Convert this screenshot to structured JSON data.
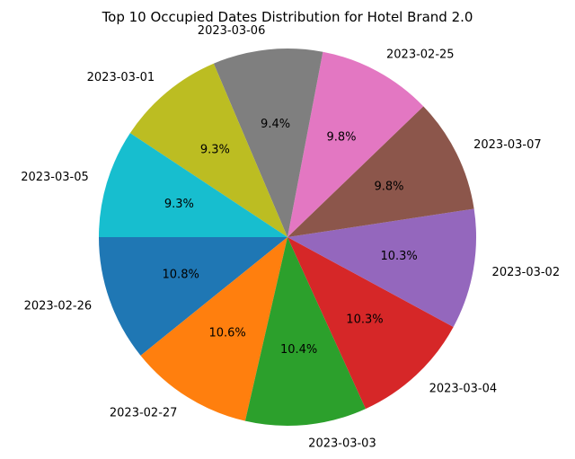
{
  "chart_data": {
    "type": "pie",
    "title": "Top 10 Occupied Dates Distribution for Hotel Brand 2.0",
    "start_angle_deg": 180,
    "direction": "counterclockwise",
    "slices": [
      {
        "label": "2023-02-26",
        "value": 10.8,
        "pct_label": "10.8%",
        "color": "#1f77b4"
      },
      {
        "label": "2023-02-27",
        "value": 10.6,
        "pct_label": "10.6%",
        "color": "#ff7f0e"
      },
      {
        "label": "2023-03-03",
        "value": 10.4,
        "pct_label": "10.4%",
        "color": "#2ca02c"
      },
      {
        "label": "2023-03-04",
        "value": 10.3,
        "pct_label": "10.3%",
        "color": "#d62728"
      },
      {
        "label": "2023-03-02",
        "value": 10.3,
        "pct_label": "10.3%",
        "color": "#9467bd"
      },
      {
        "label": "2023-03-07",
        "value": 9.8,
        "pct_label": "9.8%",
        "color": "#8c564b"
      },
      {
        "label": "2023-02-25",
        "value": 9.8,
        "pct_label": "9.8%",
        "color": "#e377c2"
      },
      {
        "label": "2023-03-06",
        "value": 9.4,
        "pct_label": "9.4%",
        "color": "#7f7f7f"
      },
      {
        "label": "2023-03-01",
        "value": 9.3,
        "pct_label": "9.3%",
        "color": "#bcbd22"
      },
      {
        "label": "2023-03-05",
        "value": 9.3,
        "pct_label": "9.3%",
        "color": "#17becf"
      }
    ]
  }
}
